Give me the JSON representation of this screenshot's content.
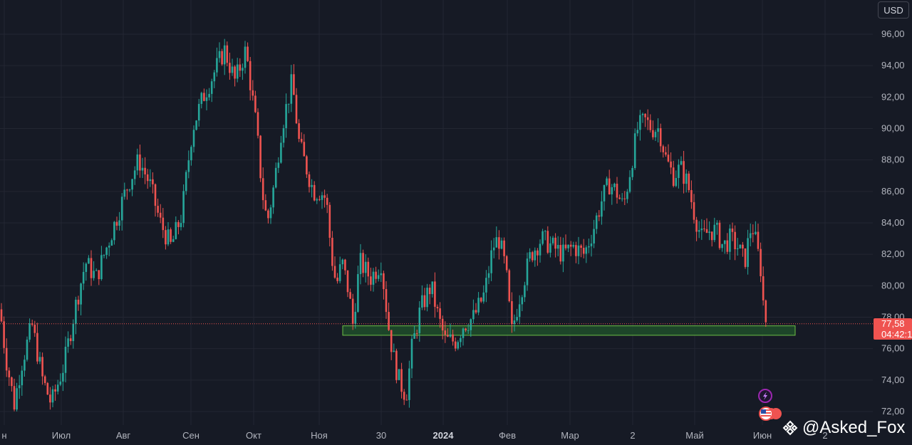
{
  "currency_button": "USD",
  "watermark": {
    "handle": "@Asked_Fox",
    "logo_icon": "binance-diamond-icon"
  },
  "price_label": {
    "price": "77,58",
    "countdown": "04:42:1"
  },
  "event_icons": [
    "lightning-icon",
    "us-flag-icon"
  ],
  "colors": {
    "background": "#161a25",
    "up": "#26a69a",
    "down": "#ef5350",
    "grid": "#232632",
    "zone_fill": "#1f4d2a",
    "zone_stroke": "#6dbe45"
  },
  "chart_data": {
    "type": "candlestick",
    "y_axis": {
      "ticks": [
        "96,00",
        "94,00",
        "92,00",
        "90,00",
        "88,00",
        "86,00",
        "84,00",
        "82,00",
        "80,00",
        "78,00",
        "76,00",
        "74,00",
        "72,00"
      ],
      "min": 71.4,
      "max": 97.0
    },
    "x_axis": {
      "labels": [
        "н",
        "Июл",
        "Авг",
        "Сен",
        "Окт",
        "Ноя",
        "30",
        "2024",
        "Фев",
        "Мар",
        "2",
        "Май",
        "Июн",
        "2"
      ],
      "bold_label": "2024"
    },
    "current_price": 77.58,
    "support_zone": {
      "low": 76.85,
      "high": 77.45
    },
    "price_path": [
      [
        0,
        78.5
      ],
      [
        8,
        75.5
      ],
      [
        20,
        72.5
      ],
      [
        30,
        75.0
      ],
      [
        45,
        77.5
      ],
      [
        60,
        74.0
      ],
      [
        72,
        72.5
      ],
      [
        90,
        75.0
      ],
      [
        105,
        78.5
      ],
      [
        120,
        81.5
      ],
      [
        135,
        80.5
      ],
      [
        150,
        82.5
      ],
      [
        165,
        84.5
      ],
      [
        180,
        86.5
      ],
      [
        195,
        88.0
      ],
      [
        210,
        86.5
      ],
      [
        225,
        84.0
      ],
      [
        240,
        82.5
      ],
      [
        255,
        84.5
      ],
      [
        270,
        90.0
      ],
      [
        285,
        92.0
      ],
      [
        300,
        93.5
      ],
      [
        315,
        95.0
      ],
      [
        330,
        93.0
      ],
      [
        345,
        95.0
      ],
      [
        360,
        90.0
      ],
      [
        368,
        86.0
      ],
      [
        375,
        84.0
      ],
      [
        385,
        86.5
      ],
      [
        395,
        90.0
      ],
      [
        410,
        93.0
      ],
      [
        420,
        89.0
      ],
      [
        430,
        87.5
      ],
      [
        440,
        86.0
      ],
      [
        450,
        86.0
      ],
      [
        458,
        85.5
      ],
      [
        465,
        82.0
      ],
      [
        472,
        80.0
      ],
      [
        480,
        81.5
      ],
      [
        490,
        79.5
      ],
      [
        495,
        77.5
      ],
      [
        505,
        81.5
      ],
      [
        520,
        80.5
      ],
      [
        535,
        81.5
      ],
      [
        545,
        77.5
      ],
      [
        552,
        75.5
      ],
      [
        560,
        74.0
      ],
      [
        570,
        73.0
      ],
      [
        578,
        76.0
      ],
      [
        590,
        78.5
      ],
      [
        605,
        80.0
      ],
      [
        615,
        78.0
      ],
      [
        625,
        76.5
      ],
      [
        640,
        76.5
      ],
      [
        650,
        77.5
      ],
      [
        665,
        78.0
      ],
      [
        680,
        79.5
      ],
      [
        692,
        82.5
      ],
      [
        700,
        83.0
      ],
      [
        710,
        81.0
      ],
      [
        718,
        77.0
      ],
      [
        730,
        79.5
      ],
      [
        745,
        82.0
      ],
      [
        760,
        83.0
      ],
      [
        775,
        82.5
      ],
      [
        790,
        82.0
      ],
      [
        805,
        82.5
      ],
      [
        820,
        82.0
      ],
      [
        832,
        83.5
      ],
      [
        845,
        85.5
      ],
      [
        855,
        86.5
      ],
      [
        865,
        86.0
      ],
      [
        875,
        85.0
      ],
      [
        885,
        87.5
      ],
      [
        895,
        90.0
      ],
      [
        905,
        90.5
      ],
      [
        915,
        90.0
      ],
      [
        925,
        90.0
      ],
      [
        935,
        88.0
      ],
      [
        945,
        87.0
      ],
      [
        955,
        87.5
      ],
      [
        965,
        86.5
      ],
      [
        975,
        84.5
      ],
      [
        985,
        83.0
      ],
      [
        995,
        83.5
      ],
      [
        1005,
        83.5
      ],
      [
        1015,
        82.5
      ],
      [
        1025,
        83.0
      ],
      [
        1035,
        82.5
      ],
      [
        1045,
        81.5
      ],
      [
        1055,
        84.0
      ],
      [
        1062,
        82.5
      ],
      [
        1068,
        81.0
      ],
      [
        1072,
        78.5
      ],
      [
        1076,
        77.6
      ]
    ]
  }
}
